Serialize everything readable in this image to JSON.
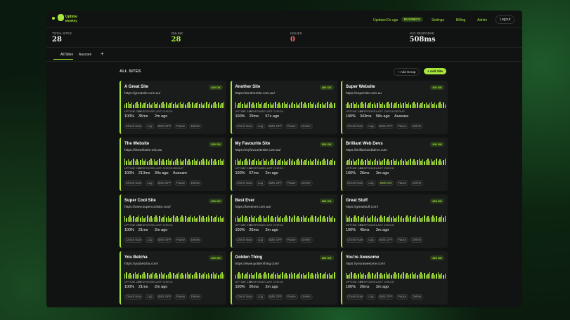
{
  "header": {
    "logo_top": "Uptime",
    "logo_bottom": "Monkey",
    "updated": "Updated 0s ago",
    "plan": "BUSINESS",
    "nav": [
      "Settings",
      "Billing",
      "Admin",
      "Logout"
    ]
  },
  "stats": [
    {
      "label": "TOTAL SITES",
      "value": "28"
    },
    {
      "label": "ONLINE",
      "value": "28"
    },
    {
      "label": "ISSUES",
      "value": "0"
    },
    {
      "label": "AVG RESPONSE",
      "value": "508ms"
    }
  ],
  "tabs": [
    "All Sites",
    "Auscare",
    "+"
  ],
  "section": {
    "title": "ALL SITES",
    "add_group": "+ Add Group",
    "add_site": "+ Add Site"
  },
  "card_labels": {
    "uptime": "UPTIME 24H",
    "response": "RESPONSE",
    "last_check": "LAST CHECK",
    "group": "GROUP",
    "check_now": "Check Now",
    "log": "Log",
    "pause": "Pause",
    "delete": "Delete"
  },
  "sites": [
    {
      "name": "A Great Site",
      "url": "https://greatsite.com.au/",
      "status": "200 OK",
      "uptime": "100%",
      "response": "35ms",
      "last_check": "2m ago",
      "sms": "SMS OFF"
    },
    {
      "name": "Another Site",
      "url": "https://anothersite.com.au/",
      "status": "200 OK",
      "uptime": "100%",
      "response": "29ms",
      "last_check": "57s ago",
      "sms": "SMS OFF"
    },
    {
      "name": "Super Website",
      "url": "https://supersite.com.au",
      "status": "200 OK",
      "uptime": "100%",
      "response": "343ms",
      "last_check": "58s ago",
      "group": "Auscare",
      "sms": "SMS OFF"
    },
    {
      "name": "The Website",
      "url": "https://thewebsite.edu.au",
      "status": "200 OK",
      "uptime": "100%",
      "response": "213ms",
      "last_check": "34s ago",
      "group": "Auscare",
      "sms": "SMS OFF"
    },
    {
      "name": "My Favourite Site",
      "url": "https://myfavouritesite.com.au/",
      "status": "200 OK",
      "uptime": "100%",
      "response": "67ms",
      "last_check": "2m ago",
      "sms": "SMS OFF"
    },
    {
      "name": "Brilliant Web Devs",
      "url": "https://brilliantwebdevs.com",
      "status": "200 OK",
      "uptime": "100%",
      "response": "26ms",
      "last_check": "2m ago",
      "sms": "SMS ON"
    },
    {
      "name": "Super Cool Site",
      "url": "https://www.supercoolsite.com/",
      "status": "200 OK",
      "uptime": "100%",
      "response": "21ms",
      "last_check": "2m ago",
      "sms": "SMS OFF"
    },
    {
      "name": "Best Ever",
      "url": "https://bestever.com.au/",
      "status": "200 OK",
      "uptime": "100%",
      "response": "26ms",
      "last_check": "2m ago",
      "sms": "SMS OFF"
    },
    {
      "name": "Great Stuff",
      "url": "https://greatstuff.com/",
      "status": "200 OK",
      "uptime": "100%",
      "response": "45ms",
      "last_check": "2m ago",
      "sms": "SMS OFF"
    },
    {
      "name": "You Betcha",
      "url": "https://youbetcha.com/",
      "status": "200 OK",
      "uptime": "100%",
      "response": "21ms",
      "last_check": "2m ago",
      "sms": "SMS OFF"
    },
    {
      "name": "Golden Thing",
      "url": "https://www.goldenthing.com/",
      "status": "200 OK",
      "uptime": "100%",
      "response": "26ms",
      "last_check": "2m ago",
      "sms": "SMS OFF"
    },
    {
      "name": "You're Awesome",
      "url": "https://yourawesome.com/",
      "status": "200 OK",
      "uptime": "100%",
      "response": "26ms",
      "last_check": "2m ago",
      "sms": "SMS OFF"
    }
  ]
}
